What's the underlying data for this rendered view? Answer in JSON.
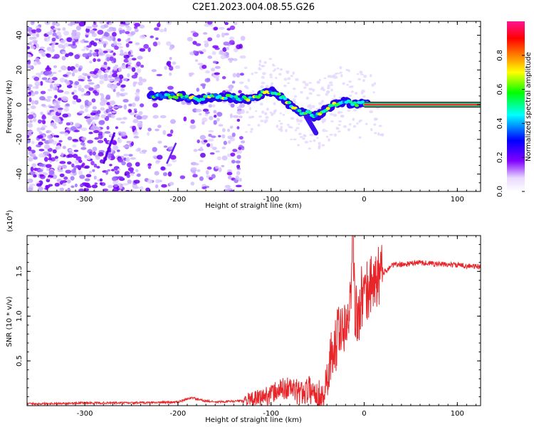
{
  "title": "C2E1.2023.004.08.55.G26",
  "chart_data": [
    {
      "type": "heatmap",
      "xlabel": "Height of straight line (km)",
      "ylabel": "Frequency (Hz)",
      "xlim": [
        -362,
        125
      ],
      "ylim": [
        -50,
        48
      ],
      "x_ticks": [
        -300,
        -200,
        -100,
        0,
        100
      ],
      "y_ticks": [
        -40,
        -20,
        0,
        20,
        40
      ],
      "colorbar": {
        "label": "Normalized spectral amplitude",
        "range": [
          0,
          1
        ],
        "ticks": [
          "0.0",
          "0.2",
          "0.4",
          "0.6",
          "0.8"
        ],
        "colors": [
          "#ffffff",
          "#e8d8ff",
          "#8000ff",
          "#0000ff",
          "#00ffff",
          "#00ff00",
          "#ffff00",
          "#ff8000",
          "#ff0000",
          "#ff1493"
        ]
      },
      "ridge": {
        "x": [
          -230,
          -210,
          -195,
          -180,
          -160,
          -140,
          -120,
          -105,
          -98,
          -90,
          -80,
          -70,
          -60,
          -52,
          -45,
          -35,
          -25,
          -15,
          -8,
          0,
          125
        ],
        "y": [
          5,
          5,
          5,
          3,
          5,
          4,
          3,
          8,
          7,
          5,
          0,
          -4,
          -5,
          -7,
          -4,
          -1,
          2,
          1,
          0,
          1,
          0
        ]
      },
      "noise_region": {
        "x_from": -362,
        "x_to": -130
      }
    },
    {
      "type": "line",
      "xlabel": "Height of straight line (km)",
      "ylabel": "SNR (10 * v/v)",
      "y_multiplier": "(x10",
      "y_multiplier_exp": "4",
      "y_multiplier_close": ")",
      "xlim": [
        -362,
        125
      ],
      "ylim": [
        0.0,
        1.9
      ],
      "x_ticks": [
        -300,
        -200,
        -100,
        0,
        100
      ],
      "y_ticks": [
        "0.5",
        "1.0",
        "1.5"
      ],
      "y_tick_values": [
        0.5,
        1.0,
        1.5
      ],
      "color": "#e8262a",
      "series": [
        {
          "x": [
            -362,
            -300,
            -250,
            -200,
            -185,
            -175,
            -160,
            -140,
            -120,
            -100,
            -90,
            -80,
            -70,
            -60,
            -50,
            -45,
            -40,
            -35,
            -30,
            -25,
            -20,
            -15,
            -12,
            -10,
            -5,
            0,
            10,
            20,
            30,
            45,
            60,
            80,
            100,
            125
          ],
          "y": [
            0.02,
            0.03,
            0.03,
            0.04,
            0.09,
            0.06,
            0.04,
            0.05,
            0.06,
            0.13,
            0.18,
            0.2,
            0.14,
            0.18,
            0.14,
            0.08,
            0.3,
            0.55,
            0.7,
            0.92,
            0.95,
            1.2,
            1.88,
            1.1,
            1.0,
            1.2,
            1.4,
            1.48,
            1.57,
            1.58,
            1.6,
            1.58,
            1.57,
            1.55
          ]
        }
      ]
    }
  ]
}
